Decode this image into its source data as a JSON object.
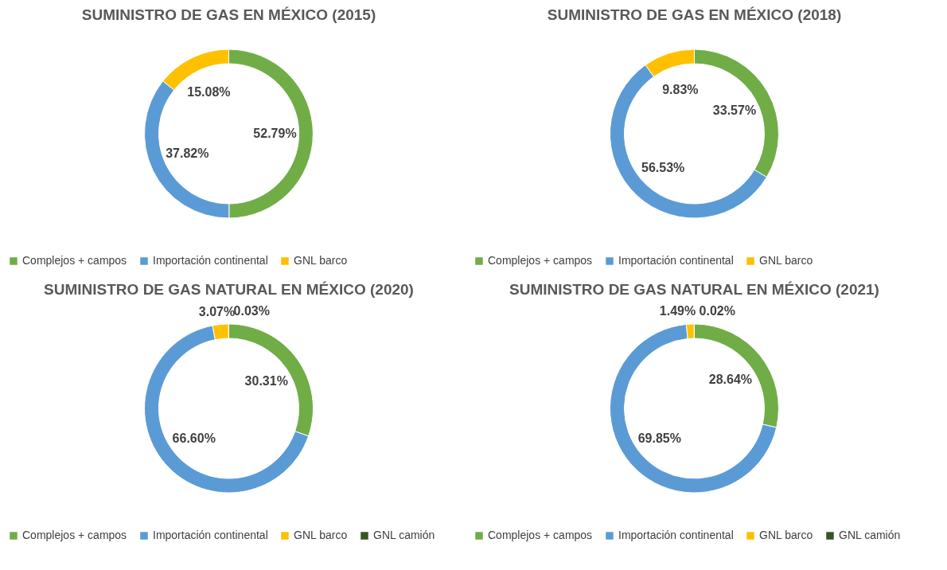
{
  "chart_data": [
    {
      "type": "donut",
      "title": "SUMINISTRO DE GAS EN MÉXICO (2015)",
      "categories": [
        "Complejos + campos",
        "Importación continental",
        "GNL barco"
      ],
      "values": [
        52.79,
        37.82,
        15.08
      ],
      "colors": [
        "#70ad47",
        "#5b9bd5",
        "#ffc000"
      ],
      "value_labels": [
        "52.79%",
        "37.82%",
        "15.08%"
      ],
      "legend": "bottom"
    },
    {
      "type": "donut",
      "title": "SUMINISTRO DE GAS EN MÉXICO (2018)",
      "categories": [
        "Complejos + campos",
        "Importación continental",
        "GNL barco"
      ],
      "values": [
        33.57,
        56.53,
        9.83
      ],
      "colors": [
        "#70ad47",
        "#5b9bd5",
        "#ffc000"
      ],
      "value_labels": [
        "33.57%",
        "56.53%",
        "9.83%"
      ],
      "legend": "bottom"
    },
    {
      "type": "donut",
      "title": "SUMINISTRO DE GAS NATURAL EN MÉXICO (2020)",
      "categories": [
        "Complejos + campos",
        "Importación continental",
        "GNL barco",
        "GNL camión"
      ],
      "values": [
        30.31,
        66.6,
        3.07,
        0.03
      ],
      "colors": [
        "#70ad47",
        "#5b9bd5",
        "#ffc000",
        "#375623"
      ],
      "value_labels": [
        "30.31%",
        "66.60%",
        "3.07%",
        "0.03%"
      ],
      "legend": "bottom"
    },
    {
      "type": "donut",
      "title": "SUMINISTRO DE GAS NATURAL EN MÉXICO (2021)",
      "categories": [
        "Complejos + campos",
        "Importación continental",
        "GNL barco",
        "GNL camión"
      ],
      "values": [
        28.64,
        69.85,
        1.49,
        0.02
      ],
      "colors": [
        "#70ad47",
        "#5b9bd5",
        "#ffc000",
        "#375623"
      ],
      "value_labels": [
        "28.64%",
        "69.85%",
        "1.49%",
        "0.02%"
      ],
      "legend": "bottom"
    }
  ]
}
